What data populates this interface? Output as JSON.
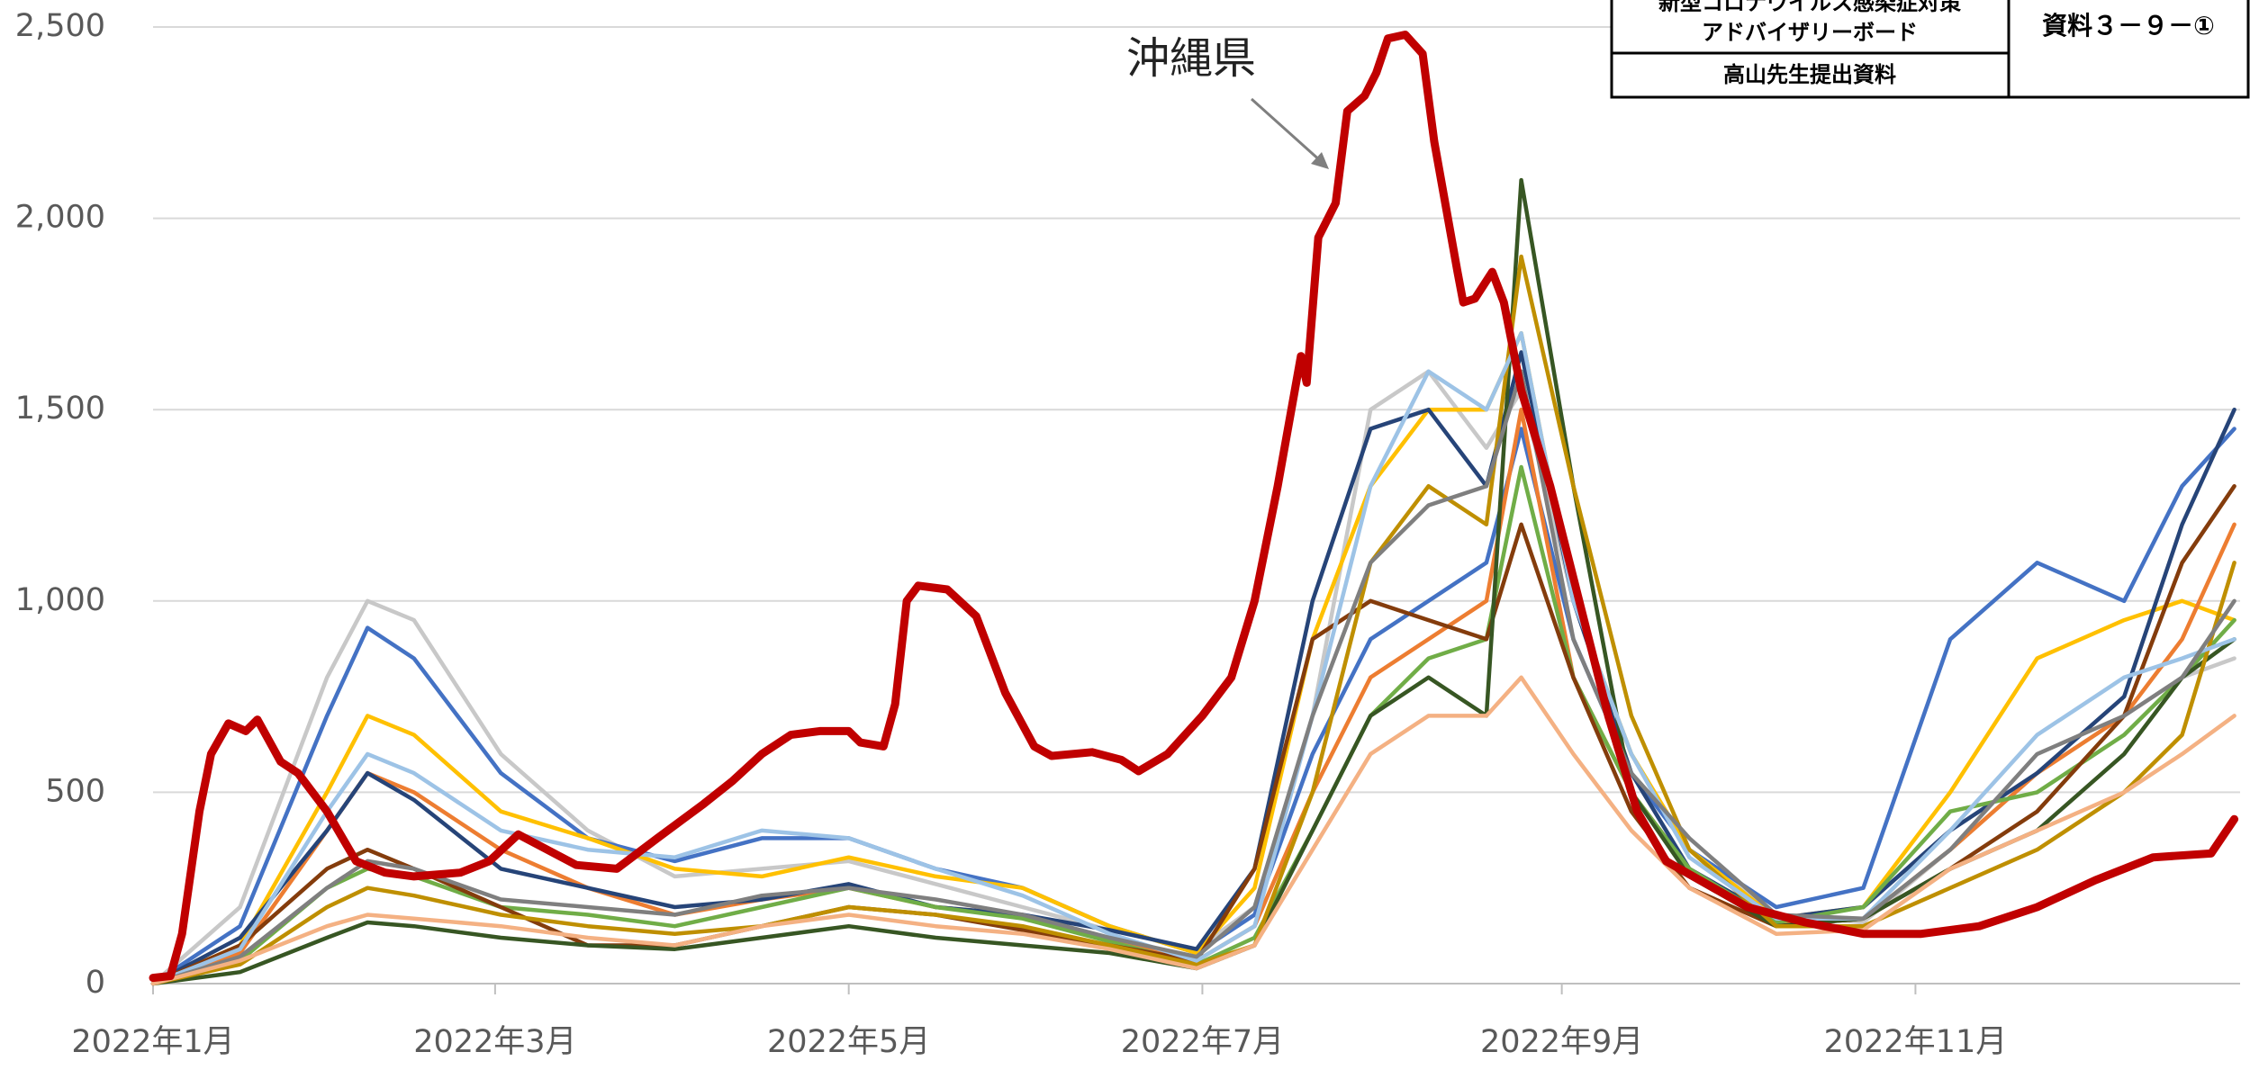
{
  "header": {
    "board": [
      "新型コロナウイルス感染症対策",
      "アドバイザリーボード"
    ],
    "presenter": "高山先生提出資料",
    "doc_id": "資料３－９－①"
  },
  "chart_data": {
    "type": "line",
    "xlim": [
      0,
      360
    ],
    "xticks": [
      {
        "value": 0,
        "label": "2022年1月"
      },
      {
        "value": 59,
        "label": "2022年3月"
      },
      {
        "value": 120,
        "label": "2022年5月"
      },
      {
        "value": 181,
        "label": "2022年7月"
      },
      {
        "value": 243,
        "label": "2022年9月"
      },
      {
        "value": 304,
        "label": "2022年11月"
      }
    ],
    "ylim": [
      0,
      2500
    ],
    "yticks": [
      0,
      500,
      {
        "value": 1000,
        "label": "1,000"
      },
      {
        "value": 1500,
        "label": "1,500"
      },
      {
        "value": 2000,
        "label": "2,000"
      },
      {
        "value": 2500,
        "label": "2,500"
      }
    ],
    "grid": true,
    "x": [
      0,
      15,
      30,
      37,
      45,
      60,
      75,
      90,
      105,
      120,
      135,
      150,
      165,
      180,
      190,
      200,
      210,
      220,
      230,
      236,
      245,
      255,
      265,
      280,
      295,
      310,
      325,
      340,
      350,
      359
    ],
    "series": [
      {
        "color": "#c8c8c8",
        "values": [
          0,
          200,
          800,
          1000,
          950,
          600,
          400,
          280,
          300,
          320,
          260,
          200,
          140,
          90,
          200,
          700,
          1500,
          1600,
          1400,
          1550,
          1000,
          600,
          350,
          180,
          160,
          350,
          550,
          700,
          800,
          850
        ]
      },
      {
        "color": "#4472c4",
        "values": [
          0,
          150,
          700,
          930,
          850,
          550,
          380,
          320,
          380,
          380,
          300,
          250,
          150,
          80,
          180,
          600,
          900,
          1000,
          1100,
          1450,
          900,
          550,
          350,
          200,
          250,
          900,
          1100,
          1000,
          1300,
          1450
        ]
      },
      {
        "color": "#ffc000",
        "values": [
          0,
          100,
          500,
          700,
          650,
          450,
          380,
          300,
          280,
          330,
          280,
          250,
          150,
          80,
          250,
          900,
          1300,
          1500,
          1500,
          1700,
          1000,
          600,
          350,
          170,
          200,
          500,
          850,
          950,
          1000,
          950
        ]
      },
      {
        "color": "#ed7d31",
        "values": [
          0,
          80,
          400,
          550,
          500,
          350,
          250,
          180,
          220,
          250,
          200,
          180,
          110,
          60,
          150,
          500,
          800,
          900,
          1000,
          1500,
          800,
          500,
          300,
          160,
          170,
          350,
          550,
          700,
          900,
          1200
        ]
      },
      {
        "color": "#264478",
        "values": [
          0,
          120,
          400,
          550,
          480,
          300,
          250,
          200,
          220,
          260,
          200,
          180,
          140,
          90,
          300,
          1000,
          1450,
          1500,
          1300,
          1650,
          1000,
          550,
          300,
          170,
          200,
          400,
          550,
          750,
          1200,
          1500
        ]
      },
      {
        "color": "#70ad47",
        "values": [
          0,
          60,
          250,
          300,
          280,
          200,
          180,
          150,
          200,
          250,
          200,
          170,
          110,
          50,
          120,
          400,
          700,
          850,
          900,
          1350,
          800,
          500,
          300,
          160,
          200,
          450,
          500,
          650,
          800,
          950
        ]
      },
      {
        "color": "#843c0c",
        "values": [
          0,
          100,
          300,
          350,
          300,
          200,
          100,
          100,
          150,
          200,
          180,
          140,
          100,
          60,
          300,
          900,
          1000,
          950,
          900,
          1200,
          800,
          450,
          250,
          150,
          170,
          300,
          450,
          700,
          1100,
          1300
        ]
      },
      {
        "color": "#375623",
        "values": [
          0,
          30,
          120,
          160,
          150,
          120,
          100,
          90,
          120,
          150,
          120,
          100,
          80,
          40,
          100,
          400,
          700,
          800,
          700,
          2100,
          1300,
          500,
          280,
          150,
          170,
          300,
          400,
          600,
          800,
          900
        ]
      },
      {
        "color": "#bf8f00",
        "values": [
          0,
          50,
          200,
          250,
          230,
          180,
          150,
          130,
          150,
          200,
          180,
          150,
          100,
          50,
          100,
          500,
          1100,
          1300,
          1200,
          1900,
          1300,
          700,
          350,
          150,
          150,
          250,
          350,
          500,
          650,
          1100
        ]
      },
      {
        "color": "#9dc3e6",
        "values": [
          0,
          90,
          450,
          600,
          550,
          400,
          350,
          330,
          400,
          380,
          300,
          230,
          130,
          60,
          150,
          700,
          1300,
          1600,
          1500,
          1700,
          1000,
          600,
          330,
          170,
          170,
          400,
          650,
          800,
          850,
          900
        ]
      },
      {
        "color": "#7f7f7f",
        "values": [
          0,
          70,
          250,
          320,
          300,
          220,
          200,
          180,
          230,
          250,
          220,
          180,
          120,
          70,
          200,
          700,
          1100,
          1250,
          1300,
          1600,
          900,
          550,
          380,
          180,
          170,
          350,
          600,
          700,
          800,
          1000
        ]
      },
      {
        "color": "#f4b183",
        "values": [
          0,
          60,
          150,
          180,
          170,
          150,
          120,
          100,
          150,
          180,
          150,
          130,
          90,
          40,
          100,
          350,
          600,
          700,
          700,
          800,
          600,
          400,
          250,
          130,
          140,
          300,
          400,
          500,
          600,
          700
        ]
      },
      {
        "name": "沖縄県",
        "color": "#c00000",
        "x": [
          0,
          3,
          5,
          8,
          10,
          13,
          16,
          18,
          22,
          25,
          30,
          35,
          40,
          45,
          53,
          58,
          63,
          68,
          73,
          80,
          87,
          95,
          100,
          105,
          110,
          115,
          120,
          122,
          126,
          128,
          130,
          132,
          137,
          142,
          147,
          152,
          155,
          162,
          167,
          170,
          175,
          181,
          186,
          190,
          194,
          198,
          199,
          201,
          204,
          206,
          209,
          211,
          213,
          216,
          219,
          221,
          225,
          226,
          228,
          231,
          233,
          236,
          241,
          246,
          251,
          256,
          261,
          268,
          275,
          285,
          295,
          305,
          315,
          325,
          335,
          345,
          355,
          359
        ],
        "values": [
          15,
          20,
          130,
          450,
          600,
          680,
          660,
          690,
          580,
          550,
          450,
          320,
          290,
          280,
          290,
          320,
          390,
          350,
          310,
          300,
          380,
          470,
          530,
          600,
          650,
          660,
          660,
          630,
          620,
          730,
          1000,
          1040,
          1030,
          960,
          760,
          620,
          595,
          605,
          585,
          555,
          600,
          700,
          800,
          1000,
          1300,
          1640,
          1570,
          1950,
          2040,
          2280,
          2320,
          2380,
          2470,
          2480,
          2430,
          2200,
          1860,
          1780,
          1790,
          1860,
          1780,
          1550,
          1300,
          1000,
          700,
          450,
          320,
          260,
          200,
          160,
          130,
          130,
          150,
          200,
          270,
          330,
          340,
          430
        ]
      }
    ]
  }
}
